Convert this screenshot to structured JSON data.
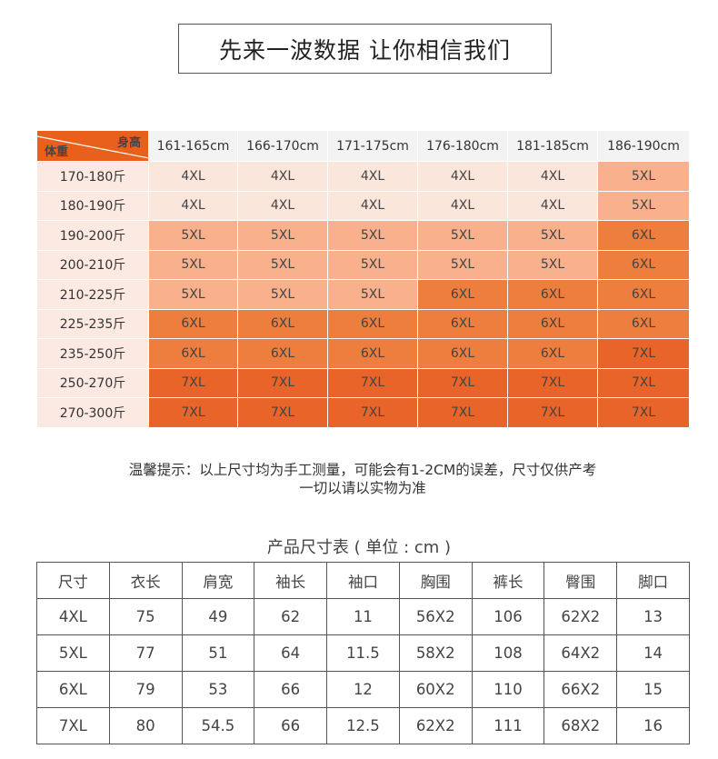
{
  "title": "先来一波数据 让你相信我们",
  "size_grid": {
    "corner_top": "身高",
    "corner_bottom": "体重",
    "heights": [
      "161-165cm",
      "166-170cm",
      "171-175cm",
      "176-180cm",
      "181-185cm",
      "186-190cm"
    ],
    "rows": [
      {
        "weight": "170-180斤",
        "sizes": [
          "4XL",
          "4XL",
          "4XL",
          "4XL",
          "4XL",
          "5XL"
        ]
      },
      {
        "weight": "180-190斤",
        "sizes": [
          "4XL",
          "4XL",
          "4XL",
          "4XL",
          "4XL",
          "5XL"
        ]
      },
      {
        "weight": "190-200斤",
        "sizes": [
          "5XL",
          "5XL",
          "5XL",
          "5XL",
          "5XL",
          "6XL"
        ]
      },
      {
        "weight": "200-210斤",
        "sizes": [
          "5XL",
          "5XL",
          "5XL",
          "5XL",
          "5XL",
          "6XL"
        ]
      },
      {
        "weight": "210-225斤",
        "sizes": [
          "5XL",
          "5XL",
          "5XL",
          "6XL",
          "6XL",
          "6XL"
        ]
      },
      {
        "weight": "225-235斤",
        "sizes": [
          "6XL",
          "6XL",
          "6XL",
          "6XL",
          "6XL",
          "6XL"
        ]
      },
      {
        "weight": "235-250斤",
        "sizes": [
          "6XL",
          "6XL",
          "6XL",
          "6XL",
          "6XL",
          "7XL"
        ]
      },
      {
        "weight": "250-270斤",
        "sizes": [
          "7XL",
          "7XL",
          "7XL",
          "7XL",
          "7XL",
          "7XL"
        ]
      },
      {
        "weight": "270-300斤",
        "sizes": [
          "7XL",
          "7XL",
          "7XL",
          "7XL",
          "7XL",
          "7XL"
        ]
      }
    ]
  },
  "note": {
    "line1": "温馨提示：以上尺寸均为手工测量，可能会有1-2CM的误差，尺寸仅供产考",
    "line2": "一切以请以实物为准"
  },
  "spec_table": {
    "title": "产品尺寸表 ( 单位 : cm )",
    "headers": [
      "尺寸",
      "衣长",
      "肩宽",
      "袖长",
      "袖口",
      "胸围",
      "裤长",
      "臀围",
      "脚口"
    ],
    "rows": [
      [
        "4XL",
        "75",
        "49",
        "62",
        "11",
        "56X2",
        "106",
        "62X2",
        "13"
      ],
      [
        "5XL",
        "77",
        "51",
        "64",
        "11.5",
        "58X2",
        "108",
        "64X2",
        "14"
      ],
      [
        "6XL",
        "79",
        "53",
        "66",
        "12",
        "60X2",
        "110",
        "66X2",
        "15"
      ],
      [
        "7XL",
        "80",
        "54.5",
        "66",
        "12.5",
        "62X2",
        "111",
        "68X2",
        "16"
      ]
    ]
  },
  "colors": {
    "4XL": "#fbe6dc",
    "5XL": "#f8b18c",
    "6XL": "#ee7e3e",
    "7XL": "#e86428",
    "corner": "#e9601c"
  }
}
